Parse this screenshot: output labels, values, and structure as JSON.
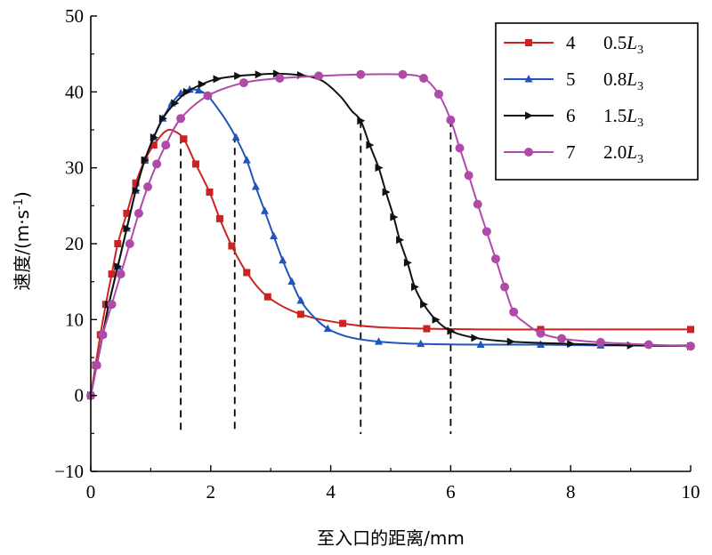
{
  "chart_data": {
    "type": "line",
    "xlabel": "至入口的距离/mm",
    "ylabel": "速度/(m·s",
    "ylabel_sup": "-1",
    "ylabel_close": ")",
    "xlim": [
      0,
      10
    ],
    "ylim": [
      -10,
      50
    ],
    "x_ticks": [
      "0",
      "2",
      "4",
      "6",
      "8",
      "10"
    ],
    "y_ticks": [
      "-10",
      "0",
      "10",
      "20",
      "30",
      "40",
      "50"
    ],
    "grid": false,
    "legend_position": "top-right",
    "dashed_verticals": [
      1.5,
      2.4,
      4.5,
      6.0
    ],
    "series": [
      {
        "name": "4",
        "label_value": "0.5",
        "label_var": "L",
        "label_sub": "3",
        "color": "#cc2222",
        "marker": "square",
        "x": [
          0,
          0.08,
          0.16,
          0.25,
          0.35,
          0.45,
          0.6,
          0.75,
          0.9,
          1.05,
          1.2,
          1.3,
          1.4,
          1.55,
          1.75,
          1.98,
          2.15,
          2.35,
          2.6,
          2.95,
          3.5,
          4.2,
          4.8,
          5.6,
          6.5,
          7.5,
          8.5,
          9.5,
          10
        ],
        "y": [
          0,
          4,
          8,
          12,
          16,
          20,
          24,
          28,
          31,
          33,
          34.5,
          35,
          34.8,
          33.8,
          30.5,
          26.8,
          23.3,
          19.7,
          16.2,
          13,
          10.7,
          9.5,
          9,
          8.8,
          8.7,
          8.7,
          8.7,
          8.7,
          8.7
        ],
        "markers": [
          0,
          0.08,
          0.16,
          0.25,
          0.35,
          0.45,
          0.6,
          0.75,
          0.9,
          1.05,
          1.55,
          1.75,
          1.98,
          2.15,
          2.35,
          2.6,
          2.95,
          3.5,
          4.2,
          5.6,
          7.5,
          10
        ]
      },
      {
        "name": "5",
        "label_value": "0.8",
        "label_var": "L",
        "label_sub": "3",
        "color": "#2255bb",
        "marker": "triangle",
        "x": [
          0,
          0.1,
          0.2,
          0.3,
          0.45,
          0.6,
          0.75,
          0.9,
          1.05,
          1.2,
          1.35,
          1.5,
          1.65,
          1.8,
          1.95,
          2.1,
          2.25,
          2.42,
          2.6,
          2.75,
          2.9,
          3.05,
          3.2,
          3.35,
          3.5,
          3.7,
          3.95,
          4.3,
          4.8,
          5.5,
          6.5,
          7.5,
          8.5,
          10
        ],
        "y": [
          0,
          4,
          8,
          12,
          17,
          22,
          27,
          31,
          34,
          36.5,
          38.5,
          39.8,
          40.3,
          40.2,
          39.5,
          38,
          36.3,
          34,
          31,
          27.5,
          24.3,
          21,
          17.8,
          15,
          12.5,
          10.5,
          8.8,
          7.7,
          7.1,
          6.8,
          6.7,
          6.7,
          6.6,
          6.6
        ],
        "markers": [
          0,
          0.1,
          0.2,
          0.3,
          0.45,
          0.6,
          0.75,
          0.9,
          1.05,
          1.2,
          1.35,
          1.5,
          1.65,
          1.8,
          2.42,
          2.6,
          2.75,
          2.9,
          3.05,
          3.2,
          3.35,
          3.5,
          3.95,
          4.8,
          5.5,
          6.5,
          7.5,
          8.5,
          10
        ]
      },
      {
        "name": "6",
        "label_value": "1.5",
        "label_var": "L",
        "label_sub": "3",
        "color": "#111111",
        "marker": "arrow",
        "x": [
          0,
          0.1,
          0.2,
          0.3,
          0.45,
          0.6,
          0.75,
          0.9,
          1.05,
          1.2,
          1.4,
          1.6,
          1.85,
          2.1,
          2.45,
          2.8,
          3.1,
          3.5,
          3.85,
          4.15,
          4.35,
          4.5,
          4.65,
          4.8,
          4.92,
          5.05,
          5.15,
          5.28,
          5.4,
          5.55,
          5.75,
          6.0,
          6.4,
          7.0,
          8.0,
          9.0,
          10
        ],
        "y": [
          0,
          4,
          8,
          12,
          17,
          22,
          27,
          31,
          34,
          36.5,
          38.5,
          40,
          41,
          41.7,
          42.1,
          42.3,
          42.4,
          42.2,
          41.5,
          39.5,
          37.5,
          36.2,
          33,
          30,
          26.8,
          23.5,
          20.5,
          17.5,
          14.3,
          12,
          10,
          8.5,
          7.6,
          7.1,
          6.8,
          6.6,
          6.5
        ],
        "markers": [
          0,
          0.1,
          0.2,
          0.3,
          0.45,
          0.6,
          0.75,
          0.9,
          1.05,
          1.2,
          1.4,
          1.6,
          1.85,
          2.1,
          2.45,
          2.8,
          3.1,
          3.5,
          4.5,
          4.65,
          4.8,
          4.92,
          5.05,
          5.15,
          5.28,
          5.4,
          5.55,
          5.75,
          6.0,
          6.4,
          7.0,
          8.0,
          9.0,
          10
        ]
      },
      {
        "name": "7",
        "label_value": "2.0",
        "label_var": "L",
        "label_sub": "3",
        "color": "#b04aa8",
        "marker": "circle",
        "x": [
          0,
          0.1,
          0.2,
          0.35,
          0.5,
          0.65,
          0.8,
          0.95,
          1.1,
          1.25,
          1.5,
          1.95,
          2.55,
          3.15,
          3.8,
          4.5,
          5.2,
          5.55,
          5.8,
          6.0,
          6.15,
          6.3,
          6.45,
          6.6,
          6.75,
          6.9,
          7.05,
          7.25,
          7.5,
          7.85,
          8.5,
          9.3,
          10
        ],
        "y": [
          0,
          4,
          8,
          12,
          16,
          20,
          24,
          27.5,
          30.5,
          33,
          36.5,
          39.5,
          41.2,
          41.8,
          42.1,
          42.3,
          42.3,
          41.8,
          39.7,
          36.3,
          32.6,
          29,
          25.2,
          21.6,
          18,
          14.3,
          11,
          9.5,
          8.2,
          7.5,
          7,
          6.7,
          6.5
        ],
        "markers": [
          0,
          0.1,
          0.2,
          0.35,
          0.5,
          0.65,
          0.8,
          0.95,
          1.1,
          1.25,
          1.5,
          1.95,
          2.55,
          3.15,
          3.8,
          4.5,
          5.2,
          5.55,
          5.8,
          6.0,
          6.15,
          6.3,
          6.45,
          6.6,
          6.75,
          6.9,
          7.05,
          7.5,
          7.85,
          8.5,
          9.3,
          10
        ]
      }
    ]
  }
}
